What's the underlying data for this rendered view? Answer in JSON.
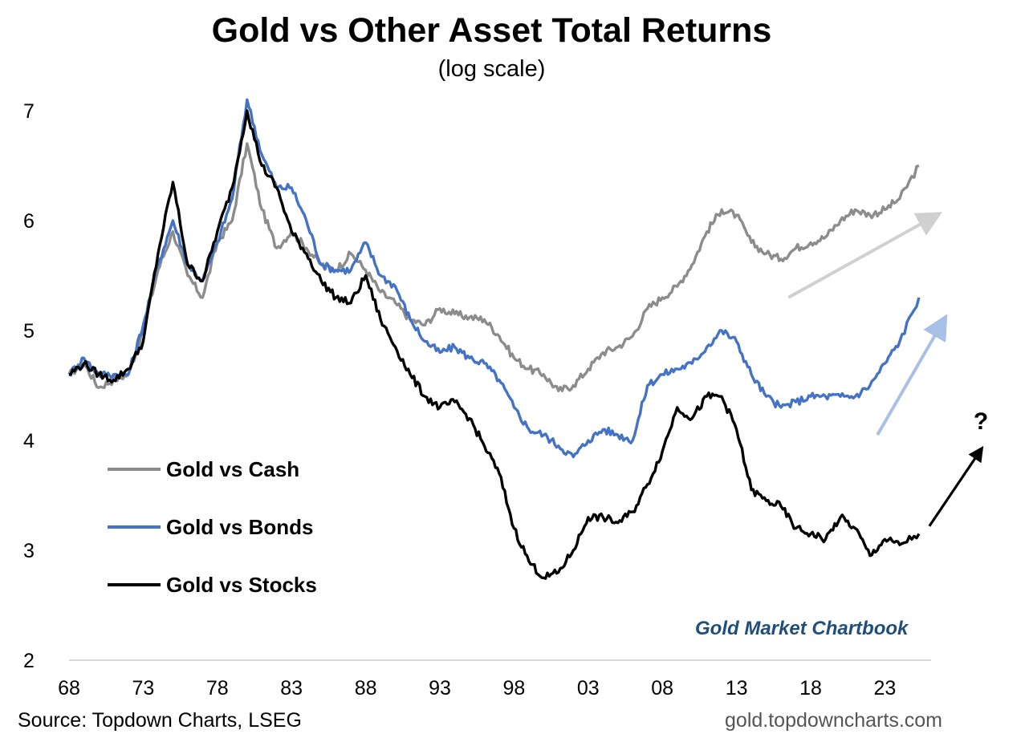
{
  "chart_data": {
    "type": "line",
    "title": "Gold vs Other Asset Total Returns",
    "subtitle": "(log scale)",
    "xlabel": "",
    "ylabel": "",
    "x_tick_labels": [
      "68",
      "73",
      "78",
      "83",
      "88",
      "93",
      "98",
      "03",
      "08",
      "13",
      "18",
      "23"
    ],
    "x_tick_years": [
      1968,
      1973,
      1978,
      1983,
      1988,
      1993,
      1998,
      2003,
      2008,
      2013,
      2018,
      2023
    ],
    "xlim": [
      1968,
      2026.5
    ],
    "y_tick_labels": [
      "2",
      "3",
      "4",
      "5",
      "6",
      "7"
    ],
    "ylim": [
      2,
      7.2
    ],
    "grid": false,
    "legend_placement": "left",
    "series": [
      {
        "name": "Gold vs Cash",
        "color": "#8c8c8c",
        "x": [
          1968,
          1969,
          1970,
          1971,
          1972,
          1973,
          1974,
          1975,
          1976,
          1977,
          1978,
          1979,
          1980,
          1981,
          1982,
          1983,
          1984,
          1985,
          1986,
          1987,
          1988,
          1989,
          1990,
          1991,
          1992,
          1993,
          1994,
          1995,
          1996,
          1997,
          1998,
          1999,
          2000,
          2001,
          2002,
          2003,
          2004,
          2005,
          2006,
          2007,
          2008,
          2009,
          2010,
          2011,
          2012,
          2013,
          2014,
          2015,
          2016,
          2017,
          2018,
          2019,
          2020,
          2021,
          2022,
          2023,
          2024,
          2025.3
        ],
        "y": [
          4.6,
          4.7,
          4.48,
          4.55,
          4.6,
          5.0,
          5.55,
          5.9,
          5.5,
          5.3,
          5.8,
          6.0,
          6.7,
          6.1,
          5.75,
          5.9,
          5.75,
          5.6,
          5.55,
          5.7,
          5.55,
          5.35,
          5.25,
          5.1,
          5.05,
          5.2,
          5.15,
          5.12,
          5.1,
          4.95,
          4.75,
          4.65,
          4.6,
          4.45,
          4.5,
          4.65,
          4.8,
          4.85,
          4.95,
          5.2,
          5.3,
          5.4,
          5.6,
          5.9,
          6.1,
          6.05,
          5.8,
          5.7,
          5.65,
          5.75,
          5.8,
          5.85,
          6.0,
          6.1,
          6.05,
          6.1,
          6.2,
          6.5
        ]
      },
      {
        "name": "Gold vs Bonds",
        "color": "#4472c4",
        "x": [
          1968,
          1969,
          1970,
          1971,
          1972,
          1973,
          1974,
          1975,
          1976,
          1977,
          1978,
          1979,
          1980,
          1981,
          1982,
          1983,
          1984,
          1985,
          1986,
          1987,
          1988,
          1989,
          1990,
          1991,
          1992,
          1993,
          1994,
          1995,
          1996,
          1997,
          1998,
          1999,
          2000,
          2001,
          2002,
          2003,
          2004,
          2005,
          2006,
          2007,
          2008,
          2009,
          2010,
          2011,
          2012,
          2013,
          2014,
          2015,
          2016,
          2017,
          2018,
          2019,
          2020,
          2021,
          2022,
          2023,
          2024,
          2025.3
        ],
        "y": [
          4.6,
          4.75,
          4.6,
          4.6,
          4.6,
          5.05,
          5.6,
          6.0,
          5.6,
          5.45,
          5.8,
          6.2,
          7.1,
          6.6,
          6.3,
          6.3,
          6.0,
          5.6,
          5.55,
          5.55,
          5.8,
          5.5,
          5.4,
          5.1,
          4.9,
          4.8,
          4.85,
          4.75,
          4.7,
          4.55,
          4.3,
          4.1,
          4.05,
          3.95,
          3.85,
          4.0,
          4.1,
          4.05,
          4.0,
          4.5,
          4.6,
          4.65,
          4.7,
          4.85,
          5.0,
          4.9,
          4.6,
          4.4,
          4.3,
          4.35,
          4.4,
          4.4,
          4.4,
          4.4,
          4.5,
          4.7,
          4.9,
          5.3
        ]
      },
      {
        "name": "Gold vs Stocks",
        "color": "#000000",
        "x": [
          1968,
          1969,
          1970,
          1971,
          1972,
          1973,
          1974,
          1975,
          1976,
          1977,
          1978,
          1979,
          1980,
          1981,
          1982,
          1983,
          1984,
          1985,
          1986,
          1987,
          1988,
          1989,
          1990,
          1991,
          1992,
          1993,
          1994,
          1995,
          1996,
          1997,
          1998,
          1999,
          2000,
          2001,
          2002,
          2003,
          2004,
          2005,
          2006,
          2007,
          2008,
          2009,
          2010,
          2011,
          2012,
          2013,
          2014,
          2015,
          2016,
          2017,
          2018,
          2019,
          2020,
          2021,
          2022,
          2023,
          2024,
          2025.3
        ],
        "y": [
          4.6,
          4.7,
          4.6,
          4.55,
          4.65,
          4.9,
          5.7,
          6.35,
          5.6,
          5.45,
          5.9,
          6.3,
          7.0,
          6.5,
          6.3,
          5.9,
          5.7,
          5.45,
          5.3,
          5.25,
          5.5,
          5.1,
          4.85,
          4.6,
          4.4,
          4.3,
          4.35,
          4.2,
          3.95,
          3.7,
          3.2,
          2.9,
          2.75,
          2.8,
          3.0,
          3.3,
          3.3,
          3.25,
          3.35,
          3.6,
          3.9,
          4.3,
          4.2,
          4.4,
          4.4,
          4.1,
          3.55,
          3.45,
          3.4,
          3.2,
          3.15,
          3.1,
          3.3,
          3.2,
          2.95,
          3.1,
          3.05,
          3.15
        ]
      }
    ],
    "annotations": {
      "question_mark": "?",
      "arrows": [
        {
          "color": "#d0d0d0",
          "from": [
            2016.5,
            5.3
          ],
          "to": [
            2026.5,
            6.05
          ]
        },
        {
          "color": "#a9c0e6",
          "from": [
            2022.5,
            4.05
          ],
          "to": [
            2027.0,
            5.1
          ]
        },
        {
          "color": "#000000",
          "from": [
            2026.0,
            3.22
          ],
          "to": [
            2029.5,
            3.92
          ]
        }
      ]
    }
  },
  "brand": "Gold Market Chartbook",
  "source": "Source: Topdown Charts, LSEG",
  "website": "gold.topdowncharts.com"
}
